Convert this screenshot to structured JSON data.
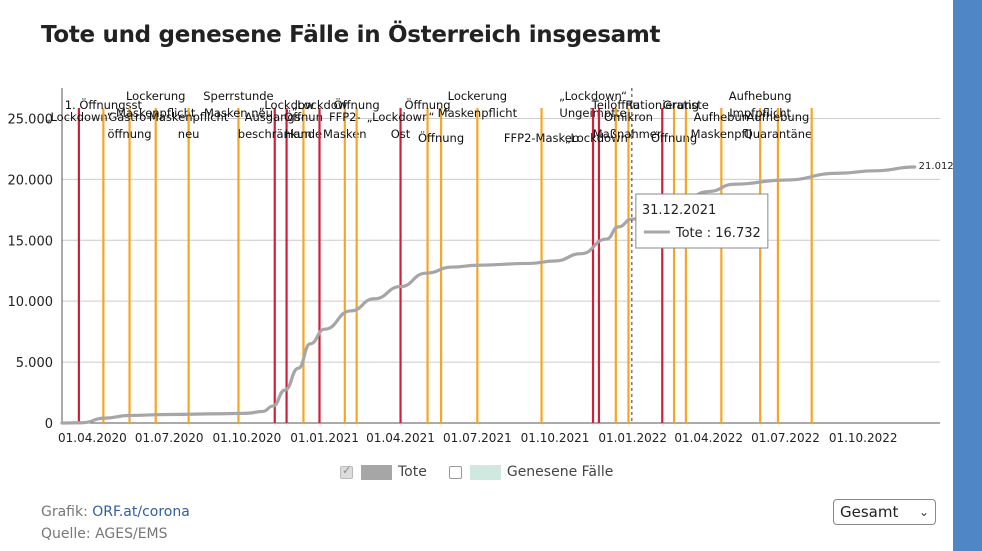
{
  "title": "Tote und genesene Fälle in Österreich insgesamt",
  "legend": [
    {
      "label": "Tote",
      "checked": true,
      "color": "#a6a6a6"
    },
    {
      "label": "Genesene Fälle",
      "checked": false,
      "color": "#cfe9e0"
    }
  ],
  "credits": {
    "graphic_label": "Grafik:",
    "graphic_link": "ORF.at/corona",
    "source": "Quelle: AGES/EMS"
  },
  "period_select": {
    "value": "Gesamt"
  },
  "tooltip": {
    "date": "31.12.2021",
    "series": "Tote",
    "value_text": "16.732"
  },
  "colors": {
    "line": "#a6a6a6",
    "lockdown": "#d01f3c",
    "opening": "#f5a623",
    "grid": "#cccccc",
    "sidebar": "#4f86c6"
  },
  "chart_data": {
    "type": "line",
    "y_ticks": [
      "0",
      "5.000",
      "10.000",
      "15.000",
      "20.000",
      "25.000"
    ],
    "ylim": [
      0,
      27500
    ],
    "x_ticks": [
      "01.04.2020",
      "01.07.2020",
      "01.10.2020",
      "01.01.2021",
      "01.04.2021",
      "01.07.2021",
      "01.10.2021",
      "01.01.2022",
      "01.04.2022",
      "01.07.2022",
      "01.10.2022"
    ],
    "xlim": [
      "2020-02-25",
      "2022-12-31"
    ],
    "series": [
      {
        "name": "Tote",
        "points": [
          [
            "2020-02-25",
            0
          ],
          [
            "2020-03-20",
            20
          ],
          [
            "2020-04-15",
            400
          ],
          [
            "2020-05-15",
            620
          ],
          [
            "2020-07-01",
            700
          ],
          [
            "2020-09-01",
            760
          ],
          [
            "2020-10-01",
            800
          ],
          [
            "2020-10-20",
            950
          ],
          [
            "2020-11-01",
            1400
          ],
          [
            "2020-11-15",
            2700
          ],
          [
            "2020-12-01",
            4500
          ],
          [
            "2020-12-15",
            6500
          ],
          [
            "2021-01-01",
            7700
          ],
          [
            "2021-02-01",
            9200
          ],
          [
            "2021-03-01",
            10200
          ],
          [
            "2021-04-01",
            11200
          ],
          [
            "2021-05-01",
            12300
          ],
          [
            "2021-06-01",
            12800
          ],
          [
            "2021-07-01",
            12950
          ],
          [
            "2021-09-01",
            13100
          ],
          [
            "2021-10-01",
            13300
          ],
          [
            "2021-11-01",
            13900
          ],
          [
            "2021-12-01",
            15100
          ],
          [
            "2021-12-15",
            16100
          ],
          [
            "2021-12-31",
            16732
          ],
          [
            "2022-02-01",
            17300
          ],
          [
            "2022-03-01",
            18300
          ],
          [
            "2022-04-01",
            19000
          ],
          [
            "2022-05-01",
            19600
          ],
          [
            "2022-07-01",
            19950
          ],
          [
            "2022-09-01",
            20500
          ],
          [
            "2022-10-15",
            20700
          ],
          [
            "2022-12-01",
            21012
          ]
        ],
        "end_label": "21.012"
      }
    ],
    "events": [
      {
        "date": "2020-03-16",
        "type": "lockdown",
        "lines": [
          "„Lockdown“"
        ],
        "row": 2
      },
      {
        "date": "2020-04-14",
        "type": "opening",
        "lines": [
          "1. Öffnungsst"
        ],
        "row": 1
      },
      {
        "date": "2020-05-15",
        "type": "opening",
        "lines": [
          "Gastro-",
          "öffnung"
        ],
        "row": 2
      },
      {
        "date": "2020-06-15",
        "type": "opening",
        "lines": [
          "Lockerung",
          "Maskenpflicht"
        ],
        "row": 0
      },
      {
        "date": "2020-07-24",
        "type": "opening",
        "lines": [
          "Maskenpflicht",
          "neu"
        ],
        "row": 2
      },
      {
        "date": "2020-09-21",
        "type": "opening",
        "lines": [
          "Sperrstunde",
          "Masken neu"
        ],
        "row": 0
      },
      {
        "date": "2020-11-03",
        "type": "lockdown",
        "lines": [
          "Ausgangs-",
          "beschränkun"
        ],
        "row": 2
      },
      {
        "date": "2020-11-17",
        "type": "lockdown",
        "lines": [
          "„Lockdow"
        ],
        "row": 1
      },
      {
        "date": "2020-12-07",
        "type": "opening",
        "lines": [
          "Öffnun",
          "Hande"
        ],
        "row": 2
      },
      {
        "date": "2020-12-26",
        "type": "lockdown",
        "lines": [
          "„Lockdow"
        ],
        "row": 1
      },
      {
        "date": "2021-01-25",
        "type": "opening",
        "lines": [
          "FFP2-",
          "Masken"
        ],
        "row": 2
      },
      {
        "date": "2021-02-08",
        "type": "opening",
        "lines": [
          "Öffnung"
        ],
        "row": 1
      },
      {
        "date": "2021-04-01",
        "type": "lockdown",
        "lines": [
          "„Lockdown“",
          "Ost"
        ],
        "row": 2
      },
      {
        "date": "2021-05-03",
        "type": "opening",
        "lines": [
          "Öffnung"
        ],
        "row": 1
      },
      {
        "date": "2021-05-19",
        "type": "opening",
        "lines": [
          "Öffnung"
        ],
        "row": 3
      },
      {
        "date": "2021-07-01",
        "type": "opening",
        "lines": [
          "Lockerung",
          "Maskenpflicht"
        ],
        "row": 0
      },
      {
        "date": "2021-09-15",
        "type": "opening",
        "lines": [
          "FFP2-Masken"
        ],
        "row": 3
      },
      {
        "date": "2021-11-15",
        "type": "lockdown",
        "lines": [
          "„Lockdown“",
          "Ungeimpfte"
        ],
        "row": 0
      },
      {
        "date": "2021-11-22",
        "type": "lockdown",
        "lines": [
          "„Lockdown“"
        ],
        "row": 3
      },
      {
        "date": "2021-12-12",
        "type": "opening",
        "lines": [
          "Teilöffnu"
        ],
        "row": 1
      },
      {
        "date": "2021-12-27",
        "type": "opening",
        "lines": [
          "Omikron",
          "Maßnahmen"
        ],
        "row": 2
      },
      {
        "date": "2022-02-05",
        "type": "lockdown",
        "lines": [
          "Rationierung"
        ],
        "row": 1
      },
      {
        "date": "2022-02-19",
        "type": "opening",
        "lines": [
          "Öffnung"
        ],
        "row": 3
      },
      {
        "date": "2022-03-05",
        "type": "opening",
        "lines": [
          "Gratiste"
        ],
        "row": 1
      },
      {
        "date": "2022-04-16",
        "type": "opening",
        "lines": [
          "Aufhebun",
          "Maskenpfli"
        ],
        "row": 2
      },
      {
        "date": "2022-06-01",
        "type": "opening",
        "lines": [
          "Aufhebung",
          "Impfpflicht"
        ],
        "row": 0
      },
      {
        "date": "2022-06-22",
        "type": "opening",
        "lines": [
          "Aufhebung",
          "Quarantäne"
        ],
        "row": 2
      },
      {
        "date": "2022-08-01",
        "type": "opening",
        "lines": [
          "",
          ""
        ],
        "row": 4
      }
    ],
    "grid": true,
    "legend_position": "bottom"
  }
}
